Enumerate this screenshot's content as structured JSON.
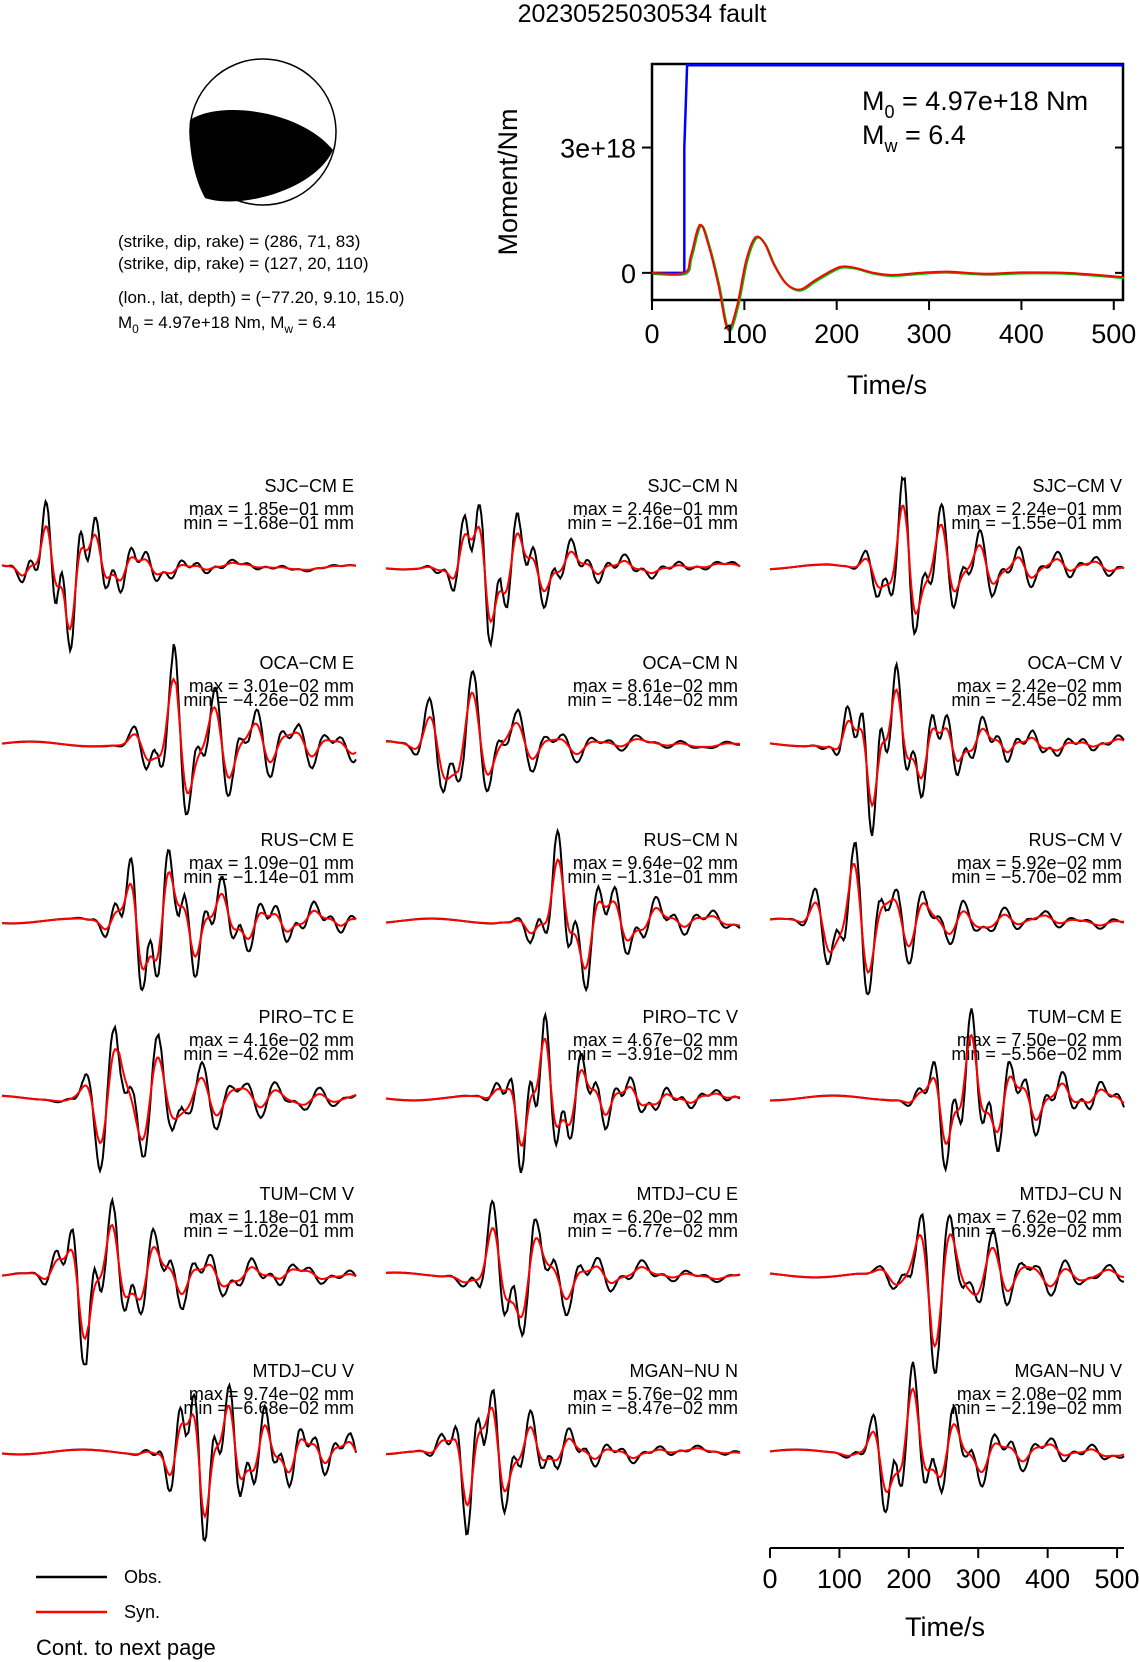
{
  "title": "20230525030534 fault",
  "colors": {
    "observed": "#000000",
    "synthetic": "#ff0000",
    "moment": "#0000ff",
    "stf": "#ff0000",
    "stf_alt": "#00c000"
  },
  "mechanism": {
    "line1": "(strike, dip, rake) = (286, 71, 83)",
    "line2": "(strike, dip, rake) = (127, 20, 110)",
    "line3": "(lon., lat, depth) = (−77.20, 9.10, 15.0)",
    "m0_prefix": "M",
    "m0_sub": "0",
    "m0_rest": " = 4.97e+18 Nm, M",
    "mw_sub": "w",
    "mw_rest": " = 6.4"
  },
  "moment_panel": {
    "ylabel": "Moment/Nm",
    "xlabel": "Time/s",
    "yticks": [
      "0",
      "3e+18"
    ],
    "xticks": [
      "0",
      "100",
      "200",
      "300",
      "400",
      "500"
    ],
    "ann_m0_main": "M",
    "ann_m0_sub": "0",
    "ann_m0_rest": " = 4.97e+18 Nm",
    "ann_mw_main": "M",
    "ann_mw_sub": "w",
    "ann_mw_rest": " = 6.4"
  },
  "chart_data": [
    {
      "type": "line",
      "xlabel": "Time/s",
      "ylabel": "Moment/Nm",
      "xlim": [
        0,
        510
      ],
      "ylim": [
        -6.5e+17,
        5e+18
      ],
      "series": [
        {
          "x": [
            0,
            35,
            35,
            38,
            510
          ],
          "y": [
            0,
            0,
            3e+18,
            4.97e+18,
            4.97e+18
          ]
        },
        {
          "x": [
            0,
            35,
            42,
            52,
            62,
            72,
            82,
            92,
            102,
            112,
            122,
            132,
            145,
            160,
            175,
            190,
            205,
            220,
            240,
            260,
            290,
            320,
            360,
            400,
            450,
            510
          ],
          "y": [
            0,
            0,
            4e+17,
            1.15e+18,
            6e+17,
            -3e+17,
            -1.35e+18,
            -8e+17,
            3e+17,
            8.5e+17,
            7e+17,
            2e+17,
            -2.5e+17,
            -4e+17,
            -2e+17,
            0,
            1.5e+17,
            1.2e+17,
            0,
            -5e+16,
            0,
            3e+16,
            -2e+16,
            1e+16,
            0,
            -1e+17
          ]
        }
      ]
    },
    {
      "type": "line",
      "xlabel": "Time/s",
      "xlim": [
        0,
        510
      ],
      "xticks": [
        "0",
        "100",
        "200",
        "300",
        "400",
        "500"
      ],
      "legend": [
        "Obs.",
        "Syn."
      ],
      "legend_position": "bottom-left",
      "traces": [
        {
          "label": "SJC−CM E",
          "max": "max = 1.85e−01 mm",
          "min": "min = −1.68e−01 mm"
        },
        {
          "label": "SJC−CM N",
          "max": "max = 2.46e−01 mm",
          "min": "min = −2.16e−01 mm"
        },
        {
          "label": "SJC−CM V",
          "max": "max = 2.24e−01 mm",
          "min": "min = −1.55e−01 mm"
        },
        {
          "label": "OCA−CM E",
          "max": "max = 3.01e−02 mm",
          "min": "min = −4.26e−02 mm"
        },
        {
          "label": "OCA−CM N",
          "max": "max = 8.61e−02 mm",
          "min": "min = −8.14e−02 mm"
        },
        {
          "label": "OCA−CM V",
          "max": "max = 2.42e−02 mm",
          "min": "min = −2.45e−02 mm"
        },
        {
          "label": "RUS−CM E",
          "max": "max = 1.09e−01 mm",
          "min": "min = −1.14e−01 mm"
        },
        {
          "label": "RUS−CM N",
          "max": "max = 9.64e−02 mm",
          "min": "min = −1.31e−01 mm"
        },
        {
          "label": "RUS−CM V",
          "max": "max = 5.92e−02 mm",
          "min": "min = −5.70e−02 mm"
        },
        {
          "label": "PIRO−TC E",
          "max": "max = 4.16e−02 mm",
          "min": "min = −4.62e−02 mm"
        },
        {
          "label": "PIRO−TC V",
          "max": "max = 4.67e−02 mm",
          "min": "min = −3.91e−02 mm"
        },
        {
          "label": "TUM−CM E",
          "max": "max = 7.50e−02 mm",
          "min": "min = −5.56e−02 mm"
        },
        {
          "label": "TUM−CM V",
          "max": "max = 1.18e−01 mm",
          "min": "min = −1.02e−01 mm"
        },
        {
          "label": "MTDJ−CU E",
          "max": "max = 6.20e−02 mm",
          "min": "min = −6.77e−02 mm"
        },
        {
          "label": "MTDJ−CU N",
          "max": "max = 7.62e−02 mm",
          "min": "min = −6.92e−02 mm"
        },
        {
          "label": "MTDJ−CU V",
          "max": "max = 9.74e−02 mm",
          "min": "min = −6.68e−02 mm"
        },
        {
          "label": "MGAN−NU N",
          "max": "max = 5.76e−02 mm",
          "min": "min = −8.47e−02 mm"
        },
        {
          "label": "MGAN−NU V",
          "max": "max = 2.08e−02 mm",
          "min": "min = −2.19e−02 mm"
        }
      ]
    }
  ],
  "legend": {
    "obs": "Obs.",
    "syn": "Syn."
  },
  "footer": "Cont. to next page"
}
